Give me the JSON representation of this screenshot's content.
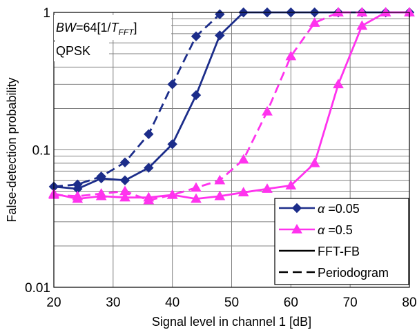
{
  "chart_data": {
    "type": "line",
    "xlabel": "Signal level in channel 1 [dB]",
    "ylabel": "False-detection probability",
    "xlim": [
      20,
      80
    ],
    "ylim": [
      0.01,
      1
    ],
    "yscale": "log",
    "grid": true,
    "legend_position": "bottom-right",
    "x_ticks": [
      "20",
      "30",
      "40",
      "50",
      "60",
      "70",
      "80"
    ],
    "y_ticks": [
      "0.01",
      "0.1",
      "1"
    ],
    "annotations": {
      "bw_prefix": "BW",
      "bw_mid": "=64[1/",
      "bw_T": "T",
      "bw_sub": "FFT",
      "bw_close": "]",
      "modulation": "QPSK"
    },
    "legend": [
      {
        "symbol": "α",
        "label": "=0.05",
        "color": "#1c2d8a",
        "marker": "diamond"
      },
      {
        "symbol": "α",
        "label": "=0.5",
        "color": "#ff33ee",
        "marker": "triangle"
      },
      {
        "label": "FFT-FB",
        "style": "solid"
      },
      {
        "label": "Periodogram",
        "style": "dashed"
      }
    ],
    "series": [
      {
        "alpha": "0.05",
        "method": "FFT-FB",
        "color": "#1c2d8a",
        "marker": "diamond",
        "dashed": false,
        "x": [
          20,
          24,
          28,
          32,
          36,
          40,
          44,
          48,
          52,
          56,
          60,
          64,
          68,
          72,
          76,
          80
        ],
        "y": [
          0.054,
          0.052,
          0.062,
          0.06,
          0.074,
          0.11,
          0.25,
          0.68,
          1.0,
          1.0,
          1.0,
          1.0,
          1.0,
          1.0,
          1.0,
          1.0
        ]
      },
      {
        "alpha": "0.05",
        "method": "Periodogram",
        "color": "#1c2d8a",
        "marker": "diamond",
        "dashed": true,
        "x": [
          20,
          24,
          28,
          32,
          36,
          40,
          44,
          48
        ],
        "y": [
          0.054,
          0.056,
          0.064,
          0.081,
          0.13,
          0.3,
          0.67,
          0.97
        ]
      },
      {
        "alpha": "0.5",
        "method": "FFT-FB",
        "color": "#ff33ee",
        "marker": "triangle",
        "dashed": false,
        "x": [
          20,
          24,
          28,
          32,
          36,
          40,
          44,
          48,
          52,
          56,
          60,
          64,
          68,
          72,
          76,
          80
        ],
        "y": [
          0.048,
          0.044,
          0.046,
          0.045,
          0.045,
          0.047,
          0.044,
          0.046,
          0.049,
          0.052,
          0.055,
          0.08,
          0.3,
          0.8,
          1.0,
          1.0
        ]
      },
      {
        "alpha": "0.5",
        "method": "Periodogram",
        "color": "#ff33ee",
        "marker": "triangle",
        "dashed": true,
        "x": [
          20,
          24,
          28,
          32,
          36,
          40,
          44,
          48,
          52,
          56,
          60,
          64,
          68,
          72
        ],
        "y": [
          0.047,
          0.046,
          0.048,
          0.05,
          0.043,
          0.047,
          0.053,
          0.06,
          0.085,
          0.19,
          0.48,
          0.84,
          1.0,
          1.0
        ]
      }
    ]
  }
}
